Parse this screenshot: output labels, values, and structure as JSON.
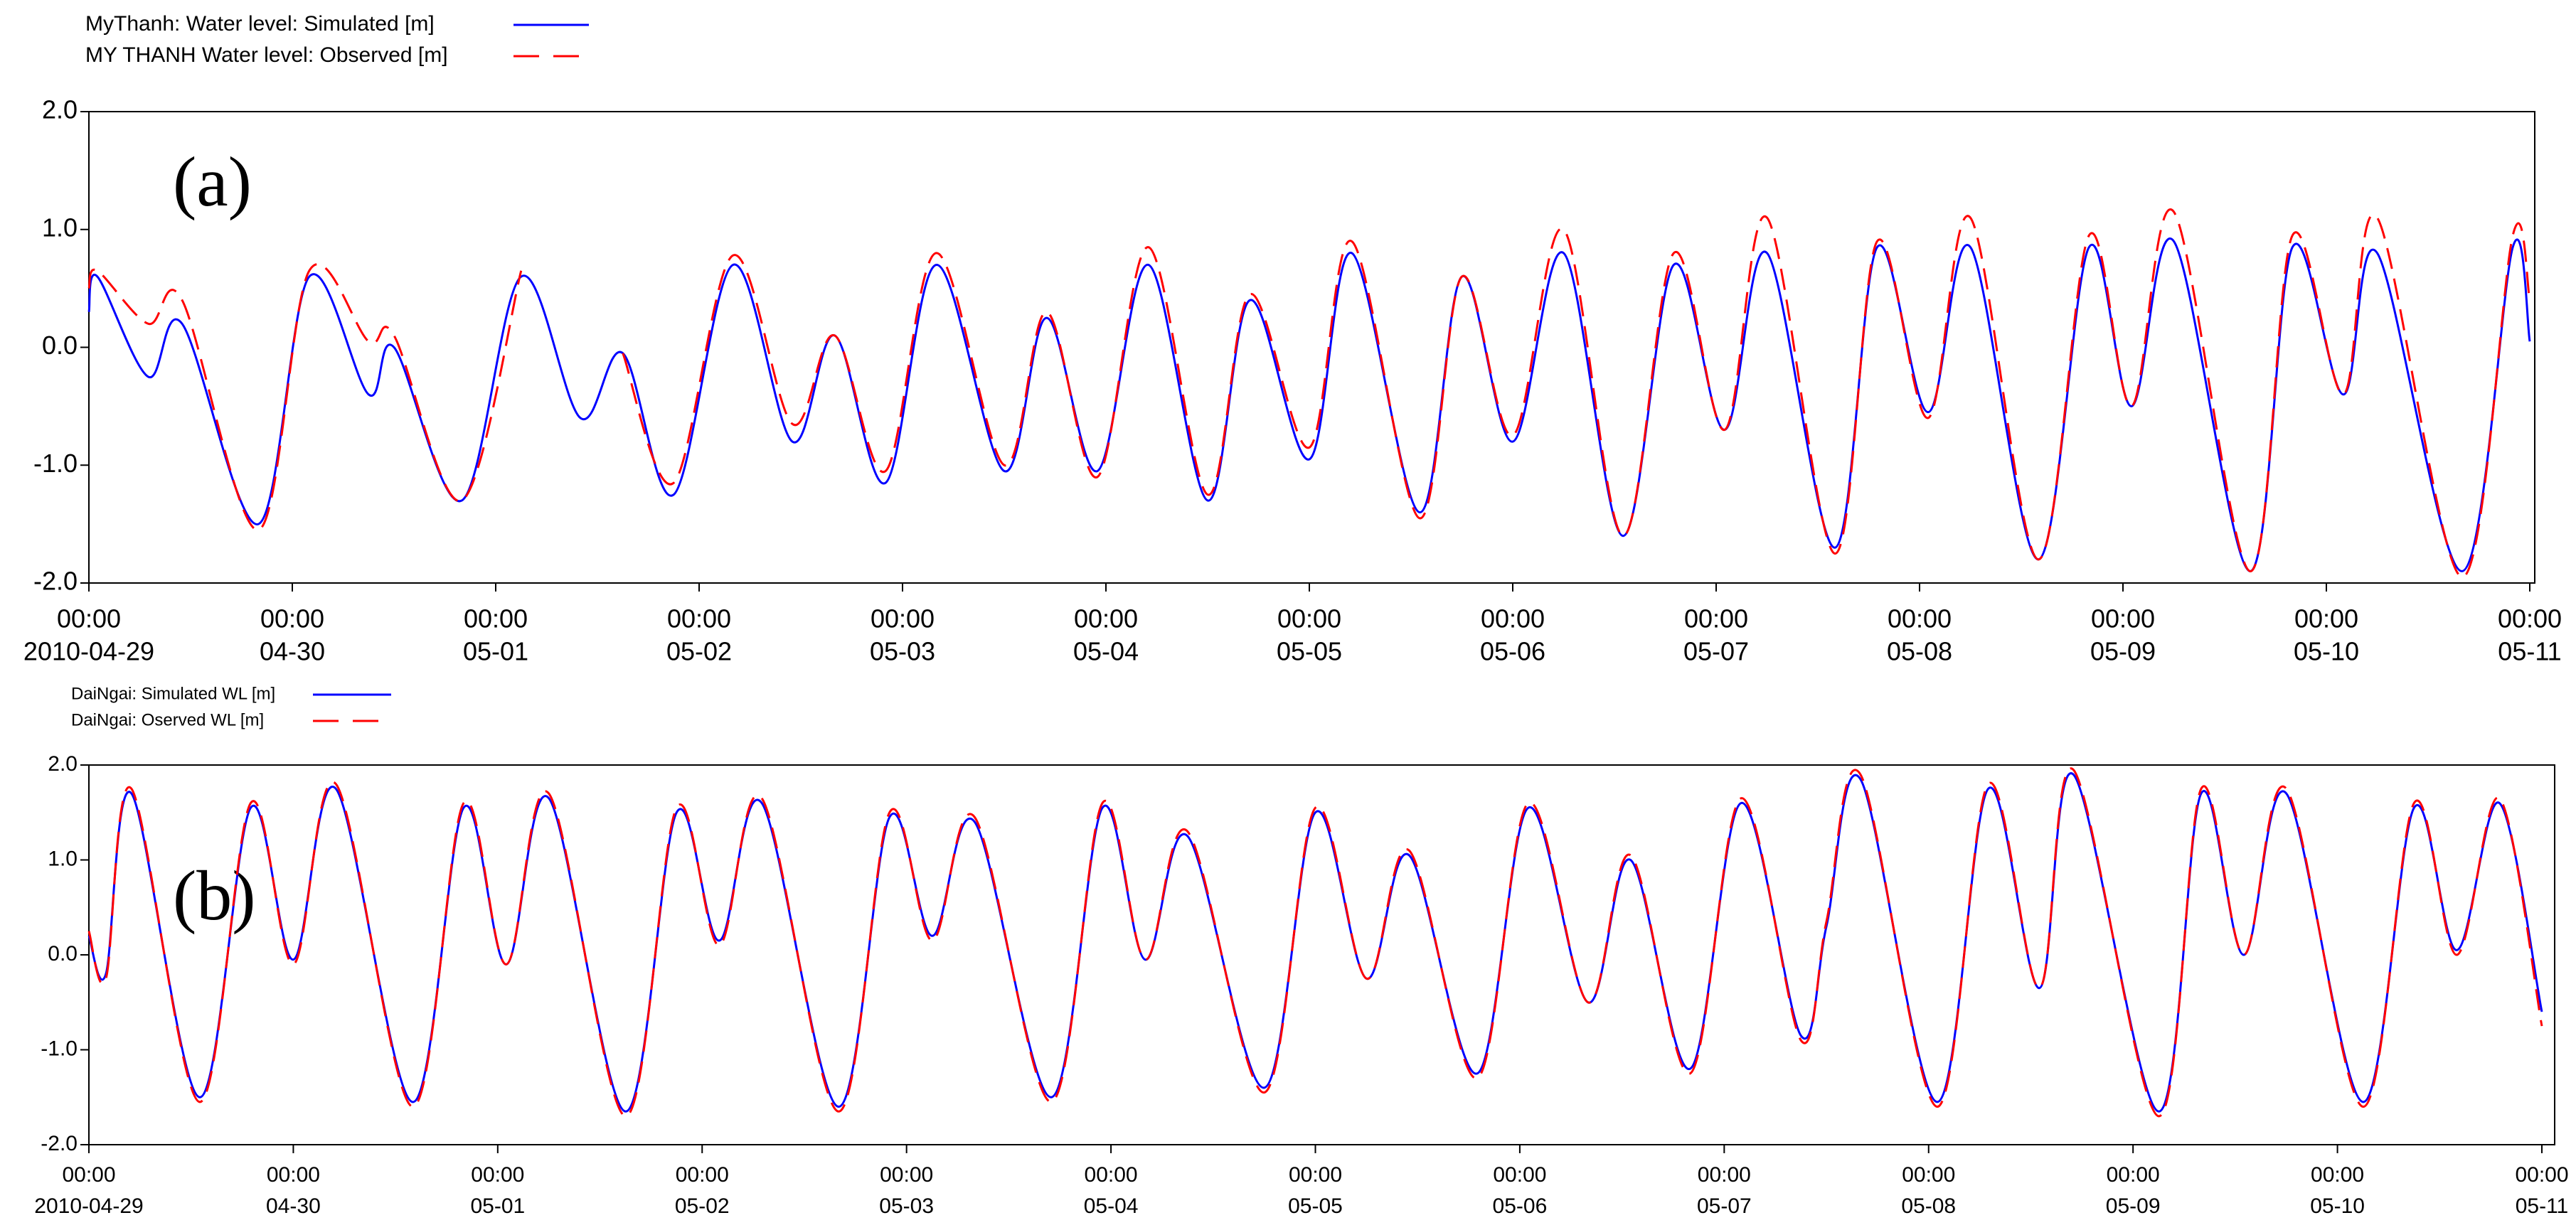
{
  "chart_data": [
    {
      "type": "line",
      "annotation": "(a)",
      "grid": false,
      "legend": "above",
      "x": [
        "2010-04-29 00:00",
        "2010-04-29 01:00",
        "2010-04-29 07:00",
        "2010-04-29 11:00",
        "2010-04-29 20:00",
        "2010-04-30 02:00",
        "2010-04-30 09:00",
        "2010-04-30 12:00",
        "2010-04-30 20:00",
        "2010-05-01 03:00",
        "2010-05-01 10:00",
        "2010-05-01 15:00",
        "2010-05-01 21:00",
        "2010-05-02 04:00",
        "2010-05-02 11:00",
        "2010-05-02 16:00",
        "2010-05-02 22:00",
        "2010-05-03 04:00",
        "2010-05-03 12:00",
        "2010-05-03 17:00",
        "2010-05-03 23:00",
        "2010-05-04 05:00",
        "2010-05-04 12:00",
        "2010-05-04 17:00",
        "2010-05-05 00:00",
        "2010-05-05 05:00",
        "2010-05-05 13:00",
        "2010-05-05 18:00",
        "2010-05-06 00:00",
        "2010-05-06 06:00",
        "2010-05-06 13:00",
        "2010-05-06 19:00",
        "2010-05-07 01:00",
        "2010-05-07 06:00",
        "2010-05-07 14:00",
        "2010-05-07 19:00",
        "2010-05-08 01:00",
        "2010-05-08 06:00",
        "2010-05-08 14:00",
        "2010-05-08 20:00",
        "2010-05-09 01:00",
        "2010-05-09 06:00",
        "2010-05-09 15:00",
        "2010-05-09 20:00",
        "2010-05-10 02:00",
        "2010-05-10 06:00",
        "2010-05-10 16:00",
        "2010-05-10 22:00",
        "2010-05-11 00:00"
      ],
      "series": [
        {
          "name": "MyThanh: Water level: Simulated    [m]",
          "color": "#0000ff",
          "dash": false,
          "values": [
            0.3,
            0.6,
            -0.25,
            0.2,
            -1.5,
            0.6,
            -0.4,
            0.0,
            -1.3,
            0.6,
            -0.6,
            -0.05,
            -1.25,
            0.7,
            -0.8,
            0.1,
            -1.15,
            0.7,
            -1.05,
            0.25,
            -1.05,
            0.7,
            -1.3,
            0.4,
            -0.95,
            0.8,
            -1.4,
            0.6,
            -0.8,
            0.8,
            -1.6,
            0.7,
            -0.7,
            0.8,
            -1.7,
            0.85,
            -0.55,
            0.85,
            -1.8,
            0.85,
            -0.5,
            0.9,
            -1.9,
            0.85,
            -0.4,
            0.8,
            -1.9,
            0.85,
            0.05
          ]
        },
        {
          "name": "MY THANH Water level: Observed [m]",
          "color": "#ff0000",
          "dash": true,
          "values": [
            0.5,
            0.65,
            0.2,
            0.4,
            -1.55,
            0.65,
            0.05,
            0.1,
            -1.3,
            0.65,
            null,
            -0.05,
            -1.15,
            0.78,
            -0.65,
            0.1,
            -1.05,
            0.8,
            -1.0,
            0.3,
            -1.1,
            0.85,
            -1.25,
            0.45,
            -0.85,
            0.9,
            -1.45,
            0.6,
            -0.75,
            1.0,
            -1.6,
            0.8,
            -0.7,
            1.1,
            -1.75,
            0.9,
            -0.6,
            1.1,
            -1.8,
            0.95,
            -0.5,
            1.15,
            -1.9,
            0.95,
            -0.4,
            1.1,
            -1.95,
            0.95,
            0.4
          ]
        }
      ],
      "xlim": [
        "2010-04-29 00:00",
        "2010-05-11 00:00"
      ],
      "xticks": [
        {
          "value": "2010-04-29 00:00",
          "label": [
            "00:00",
            "2010-04-29"
          ]
        },
        {
          "value": "2010-04-30 00:00",
          "label": [
            "00:00",
            "04-30"
          ]
        },
        {
          "value": "2010-05-01 00:00",
          "label": [
            "00:00",
            "05-01"
          ]
        },
        {
          "value": "2010-05-02 00:00",
          "label": [
            "00:00",
            "05-02"
          ]
        },
        {
          "value": "2010-05-03 00:00",
          "label": [
            "00:00",
            "05-03"
          ]
        },
        {
          "value": "2010-05-04 00:00",
          "label": [
            "00:00",
            "05-04"
          ]
        },
        {
          "value": "2010-05-05 00:00",
          "label": [
            "00:00",
            "05-05"
          ]
        },
        {
          "value": "2010-05-06 00:00",
          "label": [
            "00:00",
            "05-06"
          ]
        },
        {
          "value": "2010-05-07 00:00",
          "label": [
            "00:00",
            "05-07"
          ]
        },
        {
          "value": "2010-05-08 00:00",
          "label": [
            "00:00",
            "05-08"
          ]
        },
        {
          "value": "2010-05-09 00:00",
          "label": [
            "00:00",
            "05-09"
          ]
        },
        {
          "value": "2010-05-10 00:00",
          "label": [
            "00:00",
            "05-10"
          ]
        },
        {
          "value": "2010-05-11 00:00",
          "label": [
            "00:00",
            "05-11"
          ]
        }
      ],
      "ylim": [
        -2,
        2
      ],
      "yticks": [
        {
          "value": 2,
          "label": "2.0"
        },
        {
          "value": 1,
          "label": "1.0"
        },
        {
          "value": 0,
          "label": "0.0"
        },
        {
          "value": -1,
          "label": "-1.0"
        },
        {
          "value": -2,
          "label": "-2.0"
        }
      ]
    },
    {
      "type": "line",
      "annotation": "(b)",
      "grid": false,
      "legend": "above",
      "x": [
        "2010-04-29 00:00",
        "2010-04-29 02:00",
        "2010-04-29 05:00",
        "2010-04-29 13:00",
        "2010-04-29 19:00",
        "2010-04-30 00:00",
        "2010-04-30 05:00",
        "2010-04-30 14:00",
        "2010-04-30 20:00",
        "2010-05-01 01:00",
        "2010-05-01 06:00",
        "2010-05-01 15:00",
        "2010-05-01 21:00",
        "2010-05-02 02:00",
        "2010-05-02 07:00",
        "2010-05-02 16:00",
        "2010-05-02 22:00",
        "2010-05-03 03:00",
        "2010-05-03 08:00",
        "2010-05-03 17:00",
        "2010-05-03 23:00",
        "2010-05-04 04:00",
        "2010-05-04 09:00",
        "2010-05-04 18:00",
        "2010-05-05 00:00",
        "2010-05-05 06:00",
        "2010-05-05 11:00",
        "2010-05-05 19:00",
        "2010-05-06 01:00",
        "2010-05-06 08:00",
        "2010-05-06 13:00",
        "2010-05-06 20:00",
        "2010-05-07 02:00",
        "2010-05-07 09:00",
        "2010-05-07 12:00",
        "2010-05-07 16:00",
        "2010-05-08 01:00",
        "2010-05-08 07:00",
        "2010-05-08 13:00",
        "2010-05-08 17:00",
        "2010-05-09 03:00",
        "2010-05-09 08:00",
        "2010-05-09 13:00",
        "2010-05-09 18:00",
        "2010-05-10 03:00",
        "2010-05-10 09:00",
        "2010-05-10 14:00",
        "2010-05-10 19:00",
        "2010-05-11 00:00"
      ],
      "series": [
        {
          "name": "DaiNgai: Simulated WL [m]",
          "color": "#0000ff",
          "dash": false,
          "values": [
            0.2,
            -0.2,
            1.7,
            -1.5,
            1.55,
            -0.05,
            1.75,
            -1.55,
            1.55,
            -0.1,
            1.65,
            -1.65,
            1.5,
            0.15,
            1.6,
            -1.6,
            1.45,
            0.2,
            1.4,
            -1.5,
            1.55,
            -0.05,
            1.25,
            -1.4,
            1.5,
            -0.25,
            1.05,
            -1.25,
            1.55,
            -0.5,
            1.0,
            -1.2,
            1.6,
            -0.85,
            0.3,
            1.85,
            -1.55,
            1.75,
            -0.35,
            1.9,
            -1.65,
            1.7,
            0.0,
            1.7,
            -1.55,
            1.55,
            0.05,
            1.6,
            -0.6
          ]
        },
        {
          "name": "DaiNgai: Oserved WL  [m]",
          "color": "#ff0000",
          "dash": true,
          "values": [
            0.25,
            -0.25,
            1.75,
            -1.55,
            1.6,
            -0.1,
            1.8,
            -1.6,
            1.6,
            -0.1,
            1.7,
            -1.7,
            1.55,
            0.1,
            1.65,
            -1.65,
            1.5,
            0.15,
            1.45,
            -1.55,
            1.6,
            -0.05,
            1.3,
            -1.45,
            1.55,
            -0.25,
            1.1,
            -1.3,
            1.6,
            -0.5,
            1.05,
            -1.25,
            1.65,
            -0.9,
            0.35,
            1.9,
            -1.6,
            1.8,
            -0.35,
            1.95,
            -1.7,
            1.75,
            0.0,
            1.75,
            -1.6,
            1.6,
            0.0,
            1.65,
            -0.75
          ]
        }
      ],
      "xlim": [
        "2010-04-29 00:00",
        "2010-05-11 00:00"
      ],
      "xticks": [
        {
          "value": "2010-04-29 00:00",
          "label": [
            "00:00",
            "2010-04-29"
          ]
        },
        {
          "value": "2010-04-30 00:00",
          "label": [
            "00:00",
            "04-30"
          ]
        },
        {
          "value": "2010-05-01 00:00",
          "label": [
            "00:00",
            "05-01"
          ]
        },
        {
          "value": "2010-05-02 00:00",
          "label": [
            "00:00",
            "05-02"
          ]
        },
        {
          "value": "2010-05-03 00:00",
          "label": [
            "00:00",
            "05-03"
          ]
        },
        {
          "value": "2010-05-04 00:00",
          "label": [
            "00:00",
            "05-04"
          ]
        },
        {
          "value": "2010-05-05 00:00",
          "label": [
            "00:00",
            "05-05"
          ]
        },
        {
          "value": "2010-05-06 00:00",
          "label": [
            "00:00",
            "05-06"
          ]
        },
        {
          "value": "2010-05-07 00:00",
          "label": [
            "00:00",
            "05-07"
          ]
        },
        {
          "value": "2010-05-08 00:00",
          "label": [
            "00:00",
            "05-08"
          ]
        },
        {
          "value": "2010-05-09 00:00",
          "label": [
            "00:00",
            "05-09"
          ]
        },
        {
          "value": "2010-05-10 00:00",
          "label": [
            "00:00",
            "05-10"
          ]
        },
        {
          "value": "2010-05-11 00:00",
          "label": [
            "00:00",
            "05-11"
          ]
        }
      ],
      "ylim": [
        -2,
        2
      ],
      "yticks": [
        {
          "value": 2,
          "label": "2.0"
        },
        {
          "value": 1,
          "label": "1.0"
        },
        {
          "value": 0,
          "label": "0.0"
        },
        {
          "value": -1,
          "label": "-1.0"
        },
        {
          "value": -2,
          "label": "-2.0"
        }
      ]
    }
  ]
}
